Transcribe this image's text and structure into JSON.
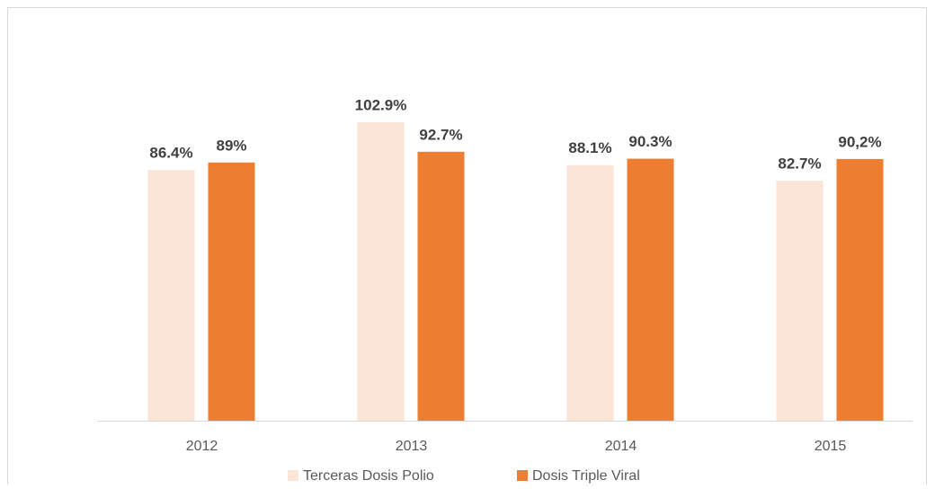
{
  "chart_data": {
    "type": "bar",
    "categories": [
      "2012",
      "2013",
      "2014",
      "2015"
    ],
    "series": [
      {
        "name": "Terceras Dosis Polio",
        "color": "#fbe5d6",
        "values": [
          86.4,
          102.9,
          88.1,
          82.7
        ],
        "value_labels": [
          "86.4%",
          "102.9%",
          "88.1%",
          "82.7%"
        ]
      },
      {
        "name": "Dosis Triple Viral",
        "color": "#ed7d31",
        "values": [
          89,
          92.7,
          90.3,
          90.2
        ],
        "value_labels": [
          "89%",
          "92.7%",
          "90.3%",
          "90,2%"
        ]
      }
    ],
    "ylim": [
      0,
      110
    ],
    "legend": "bottom"
  }
}
